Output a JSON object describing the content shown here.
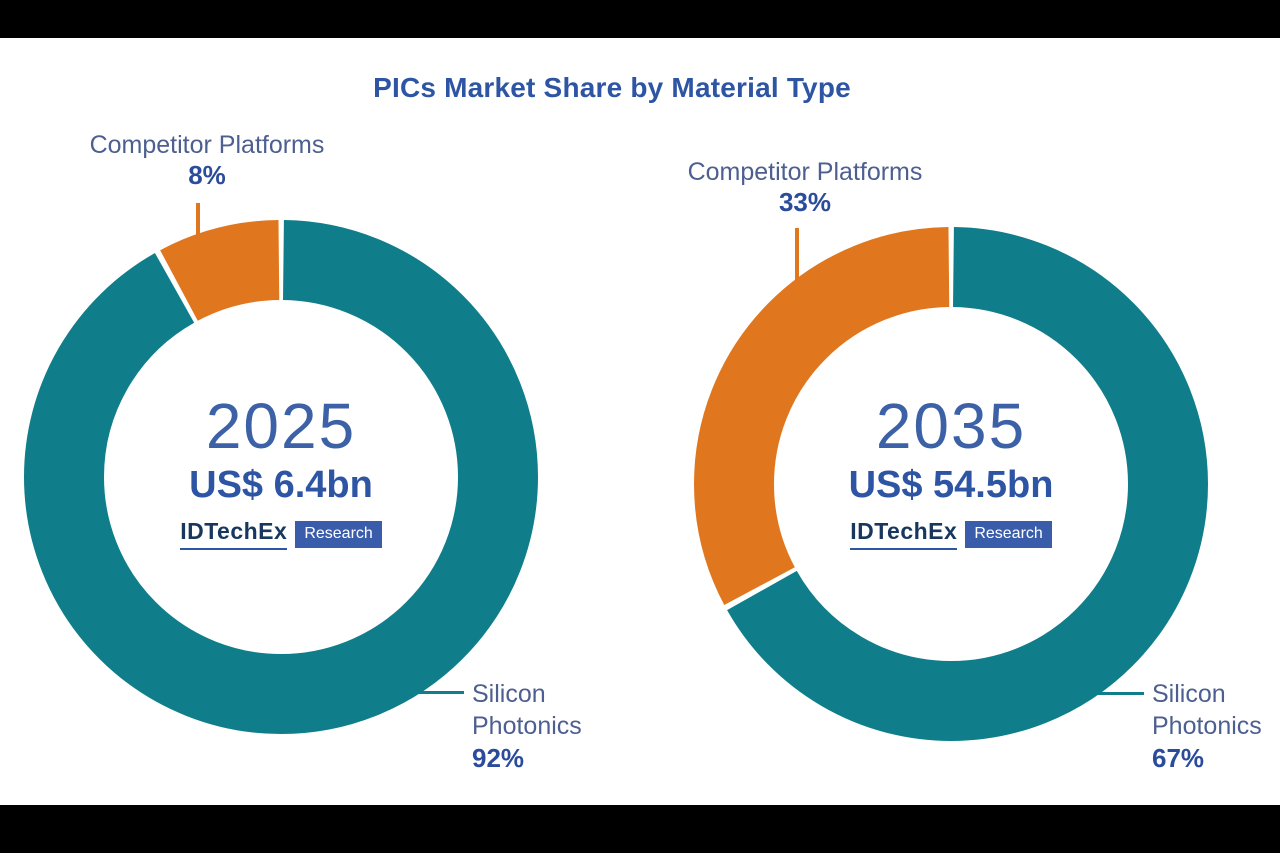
{
  "title": "PICs Market Share by Material Type",
  "colors": {
    "teal": "#0F7E8A",
    "orange": "#E0771F",
    "title_blue": "#2D55A4",
    "label_slate": "#4D5F90",
    "pct_blue": "#2B4C9B",
    "year_blue": "#3D61A7",
    "value_blue": "#2D55A4",
    "logo_navy": "#17375E",
    "logo_underline": "#2D55A4",
    "logo_box_blue": "#3A5DAB",
    "background": "#FFFFFF",
    "letterbox": "#000000"
  },
  "logo": {
    "brand": "IDTechEx",
    "sub": "Research"
  },
  "chart_data": [
    {
      "type": "pie",
      "subtype": "donut",
      "title": "2025 PICs market share by material type",
      "center_label": "2025",
      "center_value": "US$ 6.4bn",
      "start_angle_deg": 0,
      "direction": "clockwise",
      "segments": [
        {
          "label": "Silicon Photonics",
          "value_pct": 92,
          "color": "#0F7E8A"
        },
        {
          "label": "Competitor Platforms",
          "value_pct": 8,
          "color": "#E0771F"
        }
      ],
      "callouts": {
        "competitor": {
          "label": "Competitor Platforms",
          "pct": "8%"
        },
        "silicon": {
          "line1": "Silicon",
          "line2": "Photonics",
          "pct": "92%"
        }
      }
    },
    {
      "type": "pie",
      "subtype": "donut",
      "title": "2035 PICs market share by material type",
      "center_label": "2035",
      "center_value": "US$ 54.5bn",
      "start_angle_deg": 0,
      "direction": "clockwise",
      "segments": [
        {
          "label": "Silicon Photonics",
          "value_pct": 67,
          "color": "#0F7E8A"
        },
        {
          "label": "Competitor Platforms",
          "value_pct": 33,
          "color": "#E0771F"
        }
      ],
      "callouts": {
        "competitor": {
          "label": "Competitor Platforms",
          "pct": "33%"
        },
        "silicon": {
          "line1": "Silicon",
          "line2": "Photonics",
          "pct": "67%"
        }
      }
    }
  ]
}
